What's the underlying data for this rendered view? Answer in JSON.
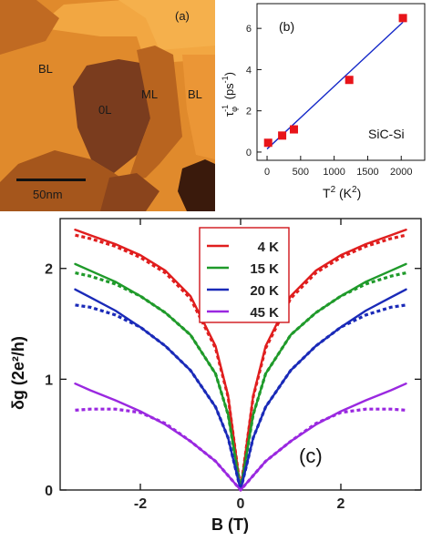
{
  "panel_a": {
    "label": "(a)",
    "region_labels": [
      "BL",
      "0L",
      "ML",
      "BL"
    ],
    "scale_bar_text": "50nm",
    "colors": {
      "dark": "#6e3a1c",
      "mid": "#b5651f",
      "light": "#e08a2c",
      "bright": "#f2a742"
    }
  },
  "panel_b": {
    "label": "(b)",
    "annotation": "SiC-Si",
    "xlabel_base": "T",
    "xlabel_sup": "2",
    "xlabel_unit_open": " (K",
    "xlabel_unit_sup": "2",
    "xlabel_unit_close": ")",
    "ylabel_base": "τ",
    "ylabel_sup": "-1",
    "ylabel_sub": "φ",
    "ylabel_unit_open": " (ps",
    "ylabel_unit_sup": "-1",
    "ylabel_unit_close": ")",
    "colors": {
      "points": "#e8141a",
      "fit": "#1428c8"
    }
  },
  "panel_c": {
    "label": "(c)",
    "ylabel": "δg (2e²/h)",
    "xlabel": "B (T)",
    "colors": {
      "4 K": "#e01e1e",
      "15 K": "#1f9a2a",
      "20 K": "#1a2ab8",
      "45 K": "#9a28e0"
    }
  },
  "chart_data": [
    {
      "type": "scatter",
      "panel": "(b)",
      "xlabel": "T² (K²)",
      "ylabel": "τφ⁻¹ (ps⁻¹)",
      "xlim": [
        -150,
        2350
      ],
      "ylim": [
        -0.4,
        7.2
      ],
      "xticks": [
        0,
        500,
        1000,
        1500,
        2000
      ],
      "yticks": [
        0,
        2,
        4,
        6
      ],
      "series": [
        {
          "x": [
            16,
            225,
            400,
            1225,
            2025
          ],
          "y": [
            0.45,
            0.8,
            1.1,
            3.5,
            6.5
          ]
        }
      ],
      "fit_line": {
        "x": [
          0,
          2025
        ],
        "y": [
          0.15,
          6.3
        ]
      }
    },
    {
      "type": "line",
      "panel": "(c)",
      "xlabel": "B (T)",
      "ylabel": "δg (2e²/h)",
      "xlim": [
        -3.6,
        3.6
      ],
      "ylim": [
        0,
        2.45
      ],
      "xticks": [
        -2,
        0,
        2
      ],
      "yticks": [
        0,
        1,
        2
      ],
      "legend": {
        "position": "top-center",
        "entries": [
          "4 K",
          "15 K",
          "20 K",
          "45 K"
        ]
      },
      "x": [
        -3.3,
        -3.0,
        -2.5,
        -2.0,
        -1.5,
        -1.0,
        -0.5,
        -0.25,
        0,
        0.25,
        0.5,
        1.0,
        1.5,
        2.0,
        2.5,
        3.0,
        3.3
      ],
      "series": [
        {
          "name": "4 K",
          "style": "solid",
          "values": [
            2.35,
            2.3,
            2.22,
            2.12,
            1.98,
            1.75,
            1.3,
            0.85,
            0.0,
            0.85,
            1.3,
            1.75,
            1.98,
            2.12,
            2.22,
            2.3,
            2.35
          ]
        },
        {
          "name": "4 K",
          "style": "dotted",
          "values": [
            2.3,
            2.27,
            2.2,
            2.1,
            1.96,
            1.73,
            1.28,
            0.84,
            0.0,
            0.84,
            1.28,
            1.73,
            1.96,
            2.1,
            2.2,
            2.27,
            2.3
          ]
        },
        {
          "name": "15 K",
          "style": "solid",
          "values": [
            2.04,
            1.98,
            1.88,
            1.75,
            1.6,
            1.4,
            1.05,
            0.68,
            0.0,
            0.68,
            1.05,
            1.4,
            1.6,
            1.75,
            1.88,
            1.98,
            2.04
          ]
        },
        {
          "name": "15 K",
          "style": "dotted",
          "values": [
            1.96,
            1.93,
            1.86,
            1.75,
            1.6,
            1.4,
            1.05,
            0.68,
            0.0,
            0.68,
            1.05,
            1.4,
            1.6,
            1.75,
            1.86,
            1.93,
            1.96
          ]
        },
        {
          "name": "20 K",
          "style": "solid",
          "values": [
            1.81,
            1.74,
            1.62,
            1.47,
            1.3,
            1.08,
            0.75,
            0.47,
            0.0,
            0.47,
            0.75,
            1.08,
            1.3,
            1.47,
            1.62,
            1.74,
            1.81
          ]
        },
        {
          "name": "20 K",
          "style": "dotted",
          "values": [
            1.67,
            1.65,
            1.58,
            1.47,
            1.3,
            1.08,
            0.75,
            0.47,
            0.0,
            0.47,
            0.75,
            1.08,
            1.3,
            1.47,
            1.58,
            1.65,
            1.67
          ]
        },
        {
          "name": "45 K",
          "style": "solid",
          "values": [
            0.96,
            0.9,
            0.81,
            0.71,
            0.59,
            0.44,
            0.26,
            0.13,
            0.0,
            0.13,
            0.26,
            0.44,
            0.59,
            0.71,
            0.81,
            0.9,
            0.96
          ]
        },
        {
          "name": "45 K",
          "style": "dotted",
          "values": [
            0.72,
            0.73,
            0.73,
            0.7,
            0.6,
            0.44,
            0.26,
            0.13,
            0.0,
            0.13,
            0.26,
            0.44,
            0.6,
            0.7,
            0.73,
            0.73,
            0.72
          ]
        }
      ]
    }
  ]
}
